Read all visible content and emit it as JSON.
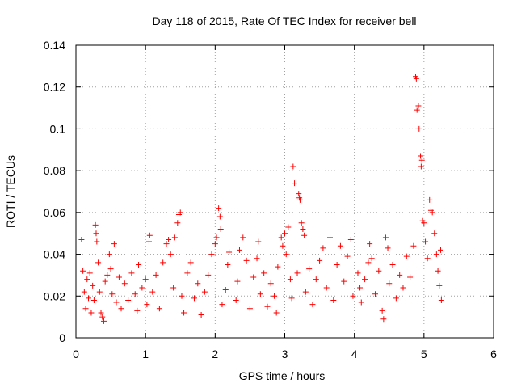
{
  "chart_data": {
    "type": "scatter",
    "title": "Day 118 of 2015, Rate Of TEC Index for receiver bell",
    "xlabel": "GPS time / hours",
    "ylabel": "ROTI / TECUs",
    "xlim": [
      0,
      6
    ],
    "ylim": [
      0,
      0.14
    ],
    "x_ticks": [
      0,
      1,
      2,
      3,
      4,
      5,
      6
    ],
    "x_tick_labels": [
      "0",
      "1",
      "2",
      "3",
      "4",
      "5",
      "6"
    ],
    "y_ticks": [
      0,
      0.02,
      0.04,
      0.06,
      0.08,
      0.1,
      0.12,
      0.14
    ],
    "y_tick_labels": [
      "0",
      "0.02",
      "0.04",
      "0.06",
      "0.08",
      "0.1",
      "0.12",
      "0.14"
    ],
    "grid": true,
    "marker": "plus",
    "color": "#ff0000",
    "series": [
      {
        "name": "ROTI",
        "points": [
          [
            0.08,
            0.047
          ],
          [
            0.1,
            0.032
          ],
          [
            0.12,
            0.022
          ],
          [
            0.14,
            0.014
          ],
          [
            0.16,
            0.028
          ],
          [
            0.18,
            0.019
          ],
          [
            0.2,
            0.031
          ],
          [
            0.22,
            0.012
          ],
          [
            0.24,
            0.025
          ],
          [
            0.26,
            0.018
          ],
          [
            0.28,
            0.054
          ],
          [
            0.29,
            0.05
          ],
          [
            0.3,
            0.046
          ],
          [
            0.32,
            0.036
          ],
          [
            0.34,
            0.022
          ],
          [
            0.36,
            0.012
          ],
          [
            0.38,
            0.01
          ],
          [
            0.4,
            0.008
          ],
          [
            0.42,
            0.027
          ],
          [
            0.45,
            0.03
          ],
          [
            0.48,
            0.04
          ],
          [
            0.5,
            0.033
          ],
          [
            0.52,
            0.021
          ],
          [
            0.55,
            0.045
          ],
          [
            0.58,
            0.017
          ],
          [
            0.62,
            0.029
          ],
          [
            0.65,
            0.014
          ],
          [
            0.7,
            0.026
          ],
          [
            0.75,
            0.018
          ],
          [
            0.8,
            0.031
          ],
          [
            0.85,
            0.021
          ],
          [
            0.88,
            0.013
          ],
          [
            0.9,
            0.035
          ],
          [
            0.95,
            0.024
          ],
          [
            1.0,
            0.028
          ],
          [
            1.02,
            0.016
          ],
          [
            1.05,
            0.046
          ],
          [
            1.06,
            0.049
          ],
          [
            1.1,
            0.022
          ],
          [
            1.15,
            0.03
          ],
          [
            1.2,
            0.014
          ],
          [
            1.25,
            0.036
          ],
          [
            1.3,
            0.045
          ],
          [
            1.33,
            0.047
          ],
          [
            1.36,
            0.04
          ],
          [
            1.4,
            0.024
          ],
          [
            1.42,
            0.048
          ],
          [
            1.46,
            0.055
          ],
          [
            1.48,
            0.059
          ],
          [
            1.5,
            0.06
          ],
          [
            1.52,
            0.02
          ],
          [
            1.55,
            0.012
          ],
          [
            1.6,
            0.031
          ],
          [
            1.65,
            0.036
          ],
          [
            1.7,
            0.019
          ],
          [
            1.75,
            0.026
          ],
          [
            1.8,
            0.011
          ],
          [
            1.85,
            0.022
          ],
          [
            1.9,
            0.03
          ],
          [
            1.95,
            0.04
          ],
          [
            2.0,
            0.045
          ],
          [
            2.02,
            0.048
          ],
          [
            2.05,
            0.062
          ],
          [
            2.07,
            0.058
          ],
          [
            2.08,
            0.052
          ],
          [
            2.1,
            0.016
          ],
          [
            2.15,
            0.023
          ],
          [
            2.18,
            0.035
          ],
          [
            2.2,
            0.041
          ],
          [
            2.3,
            0.018
          ],
          [
            2.32,
            0.027
          ],
          [
            2.35,
            0.042
          ],
          [
            2.4,
            0.048
          ],
          [
            2.45,
            0.037
          ],
          [
            2.5,
            0.014
          ],
          [
            2.55,
            0.029
          ],
          [
            2.6,
            0.038
          ],
          [
            2.62,
            0.046
          ],
          [
            2.65,
            0.021
          ],
          [
            2.7,
            0.031
          ],
          [
            2.75,
            0.015
          ],
          [
            2.8,
            0.026
          ],
          [
            2.85,
            0.02
          ],
          [
            2.88,
            0.012
          ],
          [
            2.9,
            0.034
          ],
          [
            2.95,
            0.048
          ],
          [
            2.97,
            0.044
          ],
          [
            3.0,
            0.05
          ],
          [
            3.02,
            0.04
          ],
          [
            3.05,
            0.053
          ],
          [
            3.08,
            0.028
          ],
          [
            3.1,
            0.019
          ],
          [
            3.12,
            0.082
          ],
          [
            3.14,
            0.074
          ],
          [
            3.18,
            0.031
          ],
          [
            3.2,
            0.069
          ],
          [
            3.21,
            0.067
          ],
          [
            3.22,
            0.066
          ],
          [
            3.24,
            0.055
          ],
          [
            3.26,
            0.052
          ],
          [
            3.28,
            0.049
          ],
          [
            3.3,
            0.022
          ],
          [
            3.35,
            0.033
          ],
          [
            3.4,
            0.016
          ],
          [
            3.45,
            0.028
          ],
          [
            3.5,
            0.037
          ],
          [
            3.55,
            0.043
          ],
          [
            3.6,
            0.024
          ],
          [
            3.65,
            0.048
          ],
          [
            3.7,
            0.018
          ],
          [
            3.75,
            0.035
          ],
          [
            3.8,
            0.044
          ],
          [
            3.85,
            0.027
          ],
          [
            3.9,
            0.039
          ],
          [
            3.95,
            0.047
          ],
          [
            3.98,
            0.02
          ],
          [
            4.05,
            0.031
          ],
          [
            4.08,
            0.024
          ],
          [
            4.1,
            0.017
          ],
          [
            4.15,
            0.028
          ],
          [
            4.2,
            0.036
          ],
          [
            4.22,
            0.045
          ],
          [
            4.25,
            0.038
          ],
          [
            4.3,
            0.021
          ],
          [
            4.35,
            0.032
          ],
          [
            4.4,
            0.013
          ],
          [
            4.42,
            0.009
          ],
          [
            4.45,
            0.048
          ],
          [
            4.48,
            0.043
          ],
          [
            4.5,
            0.026
          ],
          [
            4.55,
            0.035
          ],
          [
            4.6,
            0.019
          ],
          [
            4.65,
            0.03
          ],
          [
            4.7,
            0.024
          ],
          [
            4.75,
            0.039
          ],
          [
            4.8,
            0.029
          ],
          [
            4.85,
            0.044
          ],
          [
            4.88,
            0.125
          ],
          [
            4.89,
            0.124
          ],
          [
            4.9,
            0.109
          ],
          [
            4.92,
            0.111
          ],
          [
            4.93,
            0.1
          ],
          [
            4.95,
            0.087
          ],
          [
            4.96,
            0.082
          ],
          [
            4.97,
            0.085
          ],
          [
            4.98,
            0.056
          ],
          [
            5.0,
            0.055
          ],
          [
            5.02,
            0.046
          ],
          [
            5.05,
            0.038
          ],
          [
            5.08,
            0.066
          ],
          [
            5.1,
            0.061
          ],
          [
            5.12,
            0.06
          ],
          [
            5.15,
            0.05
          ],
          [
            5.18,
            0.04
          ],
          [
            5.2,
            0.032
          ],
          [
            5.22,
            0.025
          ],
          [
            5.24,
            0.042
          ],
          [
            5.25,
            0.018
          ]
        ]
      }
    ]
  }
}
